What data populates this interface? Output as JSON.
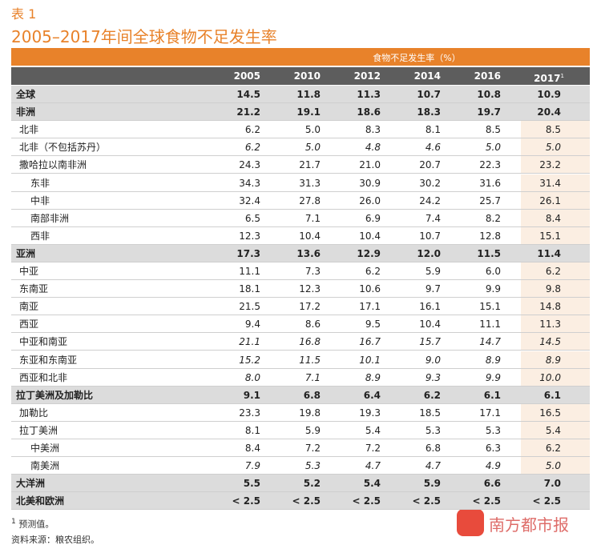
{
  "label": "表 1",
  "title": "2005–2017年间全球食物不足发生率",
  "table": {
    "caption": "食物不足发生率（%）",
    "columns": [
      "2005",
      "2010",
      "2012",
      "2014",
      "2016",
      "2017"
    ],
    "last_column_note": "1",
    "rows": [
      [
        "全球",
        "14.5",
        "11.8",
        "11.3",
        "10.7",
        "10.8",
        "10.9"
      ],
      [
        "非洲",
        "21.2",
        "19.1",
        "18.6",
        "18.3",
        "19.7",
        "20.4"
      ],
      [
        "北非",
        "6.2",
        "5.0",
        "8.3",
        "8.1",
        "8.5",
        "8.5"
      ],
      [
        "北非（不包括苏丹）",
        "6.2",
        "5.0",
        "4.8",
        "4.6",
        "5.0",
        "5.0"
      ],
      [
        "撒哈拉以南非洲",
        "24.3",
        "21.7",
        "21.0",
        "20.7",
        "22.3",
        "23.2"
      ],
      [
        "东非",
        "34.3",
        "31.3",
        "30.9",
        "30.2",
        "31.6",
        "31.4"
      ],
      [
        "中非",
        "32.4",
        "27.8",
        "26.0",
        "24.2",
        "25.7",
        "26.1"
      ],
      [
        "南部非洲",
        "6.5",
        "7.1",
        "6.9",
        "7.4",
        "8.2",
        "8.4"
      ],
      [
        "西非",
        "12.3",
        "10.4",
        "10.4",
        "10.7",
        "12.8",
        "15.1"
      ],
      [
        "亚洲",
        "17.3",
        "13.6",
        "12.9",
        "12.0",
        "11.5",
        "11.4"
      ],
      [
        "中亚",
        "11.1",
        "7.3",
        "6.2",
        "5.9",
        "6.0",
        "6.2"
      ],
      [
        "东南亚",
        "18.1",
        "12.3",
        "10.6",
        "9.7",
        "9.9",
        "9.8"
      ],
      [
        "南亚",
        "21.5",
        "17.2",
        "17.1",
        "16.1",
        "15.1",
        "14.8"
      ],
      [
        "西亚",
        "9.4",
        "8.6",
        "9.5",
        "10.4",
        "11.1",
        "11.3"
      ],
      [
        "中亚和南亚",
        "21.1",
        "16.8",
        "16.7",
        "15.7",
        "14.7",
        "14.5"
      ],
      [
        "东亚和东南亚",
        "15.2",
        "11.5",
        "10.1",
        "9.0",
        "8.9",
        "8.9"
      ],
      [
        "西亚和北非",
        "8.0",
        "7.1",
        "8.9",
        "9.3",
        "9.9",
        "10.0"
      ],
      [
        "拉丁美洲及加勒比",
        "9.1",
        "6.8",
        "6.4",
        "6.2",
        "6.1",
        "6.1"
      ],
      [
        "加勒比",
        "23.3",
        "19.8",
        "19.3",
        "18.5",
        "17.1",
        "16.5"
      ],
      [
        "拉丁美洲",
        "8.1",
        "5.9",
        "5.4",
        "5.3",
        "5.3",
        "5.4"
      ],
      [
        "中美洲",
        "8.4",
        "7.2",
        "7.2",
        "6.8",
        "6.3",
        "6.2"
      ],
      [
        "南美洲",
        "7.9",
        "5.3",
        "4.7",
        "4.7",
        "4.9",
        "5.0"
      ],
      [
        "大洋洲",
        "5.5",
        "5.2",
        "5.4",
        "5.9",
        "6.6",
        "7.0"
      ],
      [
        "北美和欧洲",
        "< 2.5",
        "< 2.5",
        "< 2.5",
        "< 2.5",
        "< 2.5",
        "< 2.5"
      ]
    ]
  },
  "footnote": {
    "mark": "1",
    "text": "预测值。"
  },
  "source": "资料来源：粮农组织。",
  "watermark": "南方都市报"
}
